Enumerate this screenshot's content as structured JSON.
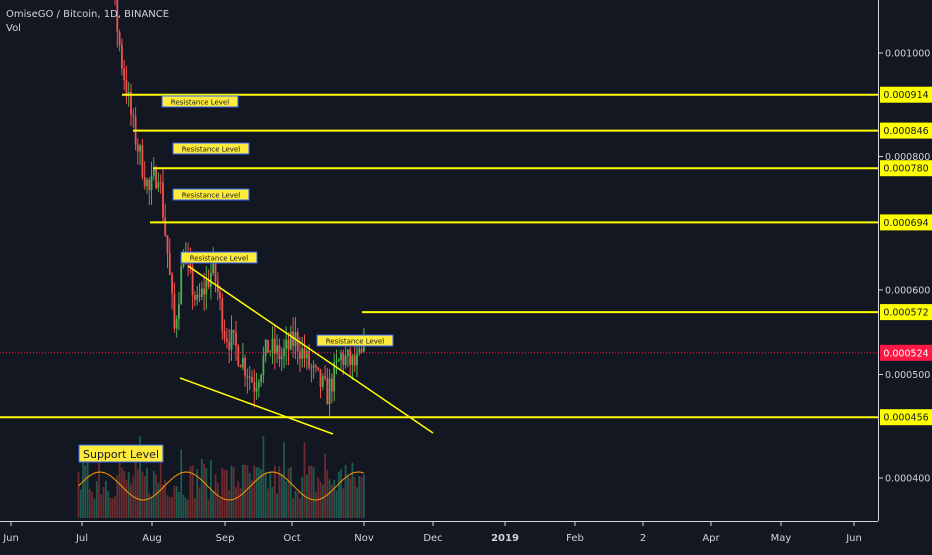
{
  "header": {
    "symbol": "OmiseGO / Bitcoin, 1D, BINANCE",
    "indicator": "Vol"
  },
  "colors": {
    "background": "#131722",
    "up": "#26a69a",
    "down": "#ef5350",
    "up_green": "#4caf50",
    "annotation": "#ffff00",
    "label_bg": "#ffeb3b",
    "label_border": "#2962ff",
    "last_price": "#ff1744",
    "ma": "#ff9800",
    "text": "#d1d4dc"
  },
  "chart_data": {
    "type": "candlestick",
    "title": "OmiseGO / Bitcoin, 1D, BINANCE",
    "indicator": "Vol",
    "x_labels": [
      "Jun",
      "Jul",
      "Aug",
      "Sep",
      "Oct",
      "Nov",
      "Dec",
      "2019",
      "Feb",
      "2",
      "Apr",
      "May",
      "Jun"
    ],
    "y_tick_labels": [
      "0.001000",
      "0.000800",
      "0.000600",
      "0.000500",
      "0.000400"
    ],
    "y_ticks": [
      0.001,
      0.0008,
      0.0006,
      0.0005,
      0.0004
    ],
    "y_scale": "log",
    "y_range": [
      0.00034,
      0.0013
    ],
    "resistance_levels": [
      0.000914,
      0.000846,
      0.00078,
      0.000694,
      0.000572
    ],
    "support_level": 0.000456,
    "last_price": 0.000524,
    "level_labels": [
      "0.000914",
      "0.000846",
      "0.000780",
      "0.000694",
      "0.000572",
      "0.000456"
    ],
    "last_price_label": "0.000524",
    "annotations": {
      "resistance": "Resistance Level",
      "support": "Support Level"
    },
    "close_path": [
      [
        "2018-07-01",
        0.00125
      ],
      [
        "2018-07-15",
        0.00118
      ],
      [
        "2018-07-20",
        0.00098
      ],
      [
        "2018-07-25",
        0.00085
      ],
      [
        "2018-08-01",
        0.00074
      ],
      [
        "2018-08-05",
        0.00078
      ],
      [
        "2018-08-09",
        0.00065
      ],
      [
        "2018-08-12",
        0.00055
      ],
      [
        "2018-08-16",
        0.00065
      ],
      [
        "2018-08-22",
        0.00058
      ],
      [
        "2018-08-29",
        0.00063
      ],
      [
        "2018-09-03",
        0.00055
      ],
      [
        "2018-09-10",
        0.00052
      ],
      [
        "2018-09-16",
        0.00049
      ],
      [
        "2018-09-22",
        0.00053
      ],
      [
        "2018-09-28",
        0.00052
      ],
      [
        "2018-10-04",
        0.00054
      ],
      [
        "2018-10-12",
        0.0005
      ],
      [
        "2018-10-18",
        0.00048
      ],
      [
        "2018-10-24",
        0.00052
      ],
      [
        "2018-10-30",
        0.00051
      ],
      [
        "2018-11-04",
        0.000524
      ]
    ]
  }
}
